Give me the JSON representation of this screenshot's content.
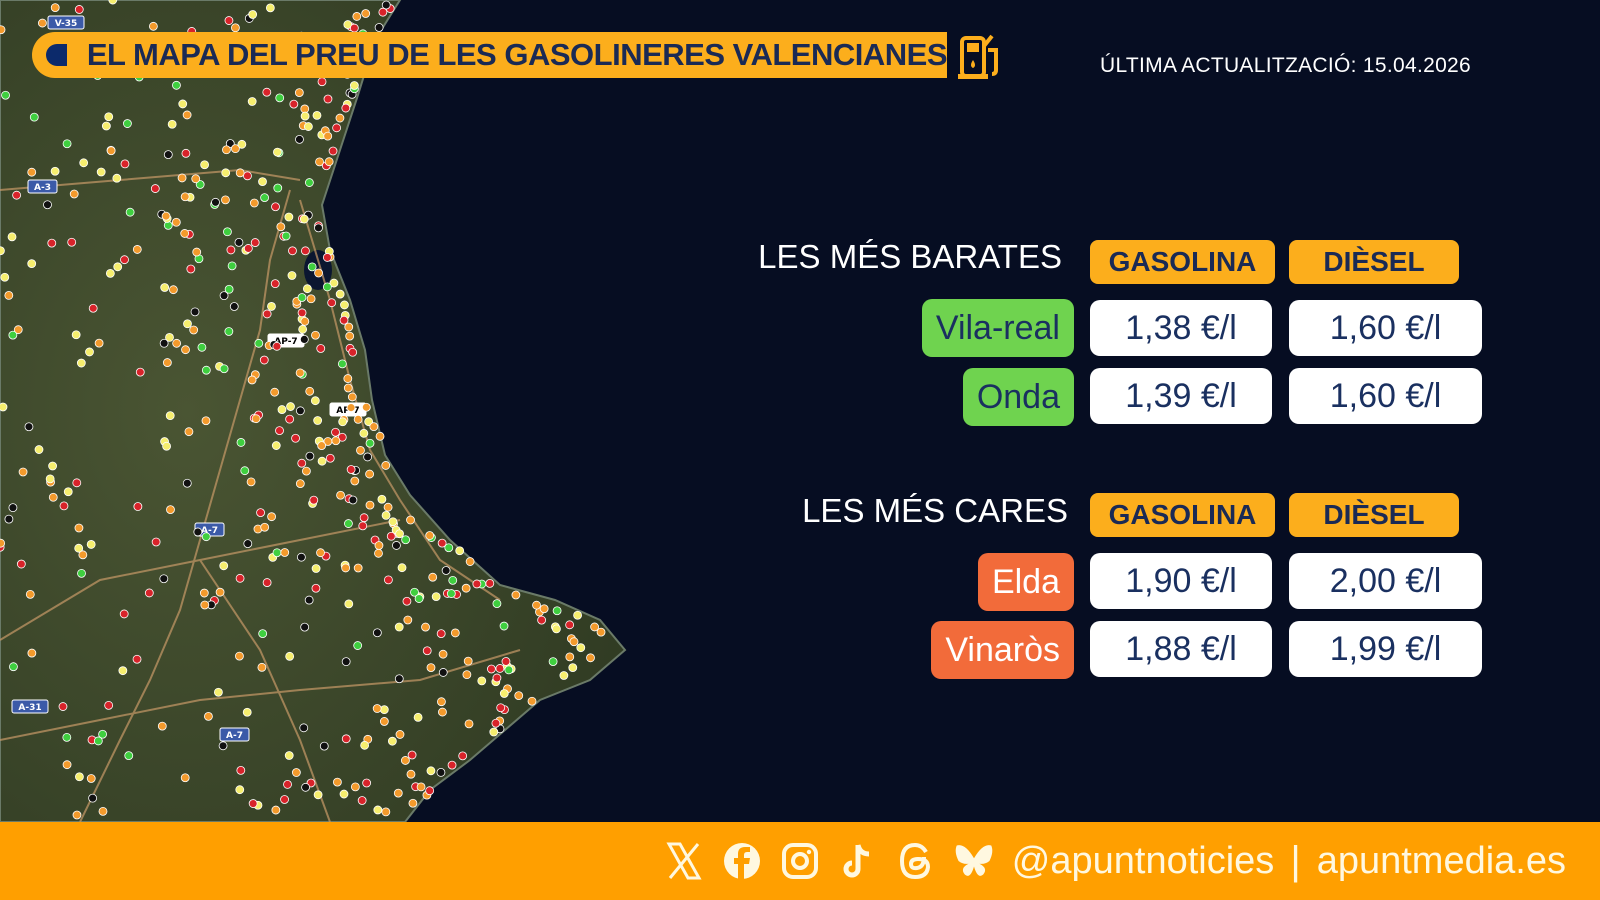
{
  "header": {
    "title": "EL MAPA DEL PREU DE LES GASOLINERES VALENCIANES",
    "icon": "fuel-pump-icon",
    "last_update": "ÚLTIMA ACTUALITZACIÓ: 15.04.2026"
  },
  "map": {
    "road_labels": [
      "V-35",
      "A-3",
      "AP-7",
      "AP-7",
      "A-7",
      "A-31",
      "A-7"
    ],
    "colors": {
      "sea": "#060d22",
      "land": "#3d4a2c",
      "cheap": "#3fcf3f",
      "low": "#f6ee6e",
      "mid": "#f39a2c",
      "high": "#d8232a",
      "very_high": "#111111"
    }
  },
  "cheapest": {
    "title": "LES MÉS BARATES",
    "col_gasolina": "GASOLINA",
    "col_diesel": "DIÈSEL",
    "rows": [
      {
        "city": "Vila-real",
        "gasolina": "1,38 €/l",
        "diesel": "1,60 €/l"
      },
      {
        "city": "Onda",
        "gasolina": "1,39 €/l",
        "diesel": "1,60 €/l"
      }
    ]
  },
  "expensive": {
    "title": "LES MÉS CARES",
    "col_gasolina": "GASOLINA",
    "col_diesel": "DIÈSEL",
    "rows": [
      {
        "city": "Elda",
        "gasolina": "1,90 €/l",
        "diesel": "2,00 €/l"
      },
      {
        "city": "Vinaròs",
        "gasolina": "1,88 €/l",
        "diesel": "1,99 €/l"
      }
    ]
  },
  "colors": {
    "accent": "#fcae1c",
    "footer": "#ff9f00",
    "cheap_badge": "#6fd34f",
    "expensive_badge": "#f26b3a",
    "text_dark": "#1a2a55"
  },
  "footer": {
    "social_icons": [
      "x-icon",
      "facebook-icon",
      "instagram-icon",
      "tiktok-icon",
      "threads-icon",
      "bluesky-icon"
    ],
    "handle": "@apuntnoticies",
    "separator": "|",
    "website": "apuntmedia.es"
  }
}
